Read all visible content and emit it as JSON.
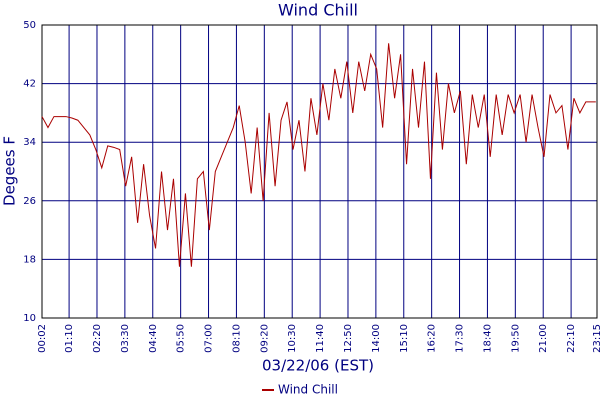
{
  "chart_data": {
    "type": "line",
    "title": "Wind Chill",
    "x_label": "03/22/06 (EST)",
    "y_label": "Degees F",
    "x": [
      2,
      17,
      32,
      47,
      62,
      77,
      92,
      107,
      122,
      137,
      152,
      167,
      182,
      197,
      212,
      227,
      242,
      257,
      272,
      287,
      302,
      317,
      332,
      347,
      362,
      377,
      392,
      407,
      422,
      437,
      452,
      467,
      482,
      497,
      512,
      527,
      542,
      557,
      572,
      587,
      602,
      617,
      632,
      647,
      662,
      677,
      692,
      707,
      722,
      737,
      752,
      767,
      782,
      797,
      812,
      827,
      842,
      857,
      872,
      887,
      902,
      917,
      932,
      947,
      962,
      977,
      992,
      1007,
      1022,
      1037,
      1052,
      1067,
      1082,
      1097,
      1112,
      1127,
      1142,
      1157,
      1172,
      1187,
      1202,
      1217,
      1232,
      1247,
      1262,
      1277,
      1292,
      1307,
      1322,
      1337,
      1352,
      1367,
      1382,
      1392
    ],
    "series": [
      {
        "name": "Wind Chill",
        "color": "#aa0000",
        "values": [
          37.5,
          36,
          37.5,
          37.5,
          37.5,
          37.3,
          37,
          36,
          35,
          33,
          30.5,
          33.5,
          33.3,
          33,
          28,
          32,
          23,
          31,
          24,
          19.5,
          30,
          22,
          29,
          17,
          27,
          17,
          29,
          30,
          22,
          30,
          32,
          34,
          36,
          39,
          34,
          27,
          36,
          26,
          38,
          28,
          37,
          39.5,
          33,
          37,
          30,
          40,
          35,
          42,
          37,
          44,
          40,
          45,
          38,
          45,
          41,
          46,
          44,
          36,
          47.5,
          40,
          46,
          31,
          44,
          36,
          45,
          29,
          43.5,
          33,
          42,
          38,
          41,
          31,
          40.5,
          36,
          40.5,
          32,
          40.5,
          35,
          40.5,
          38,
          40.5,
          34,
          40.5,
          36,
          32,
          40.5,
          38,
          39,
          33,
          40,
          38,
          39.5,
          39.5,
          39.5
        ]
      }
    ],
    "xlim": [
      2,
      1395
    ],
    "xticks": [
      {
        "value": 2,
        "label": "00:02"
      },
      {
        "value": 70,
        "label": "01:10"
      },
      {
        "value": 140,
        "label": "02:20"
      },
      {
        "value": 210,
        "label": "03:30"
      },
      {
        "value": 280,
        "label": "04:40"
      },
      {
        "value": 350,
        "label": "05:50"
      },
      {
        "value": 420,
        "label": "07:00"
      },
      {
        "value": 490,
        "label": "08:10"
      },
      {
        "value": 560,
        "label": "09:20"
      },
      {
        "value": 630,
        "label": "10:30"
      },
      {
        "value": 700,
        "label": "11:40"
      },
      {
        "value": 770,
        "label": "12:50"
      },
      {
        "value": 840,
        "label": "14:00"
      },
      {
        "value": 910,
        "label": "15:10"
      },
      {
        "value": 980,
        "label": "16:20"
      },
      {
        "value": 1050,
        "label": "17:30"
      },
      {
        "value": 1120,
        "label": "18:40"
      },
      {
        "value": 1190,
        "label": "19:50"
      },
      {
        "value": 1260,
        "label": "21:00"
      },
      {
        "value": 1330,
        "label": "22:10"
      },
      {
        "value": 1395,
        "label": "23:15"
      }
    ],
    "ylim": [
      10,
      50
    ],
    "yticks": [
      10,
      18,
      26,
      34,
      42,
      50
    ],
    "grid": true,
    "legend": "bottom"
  }
}
